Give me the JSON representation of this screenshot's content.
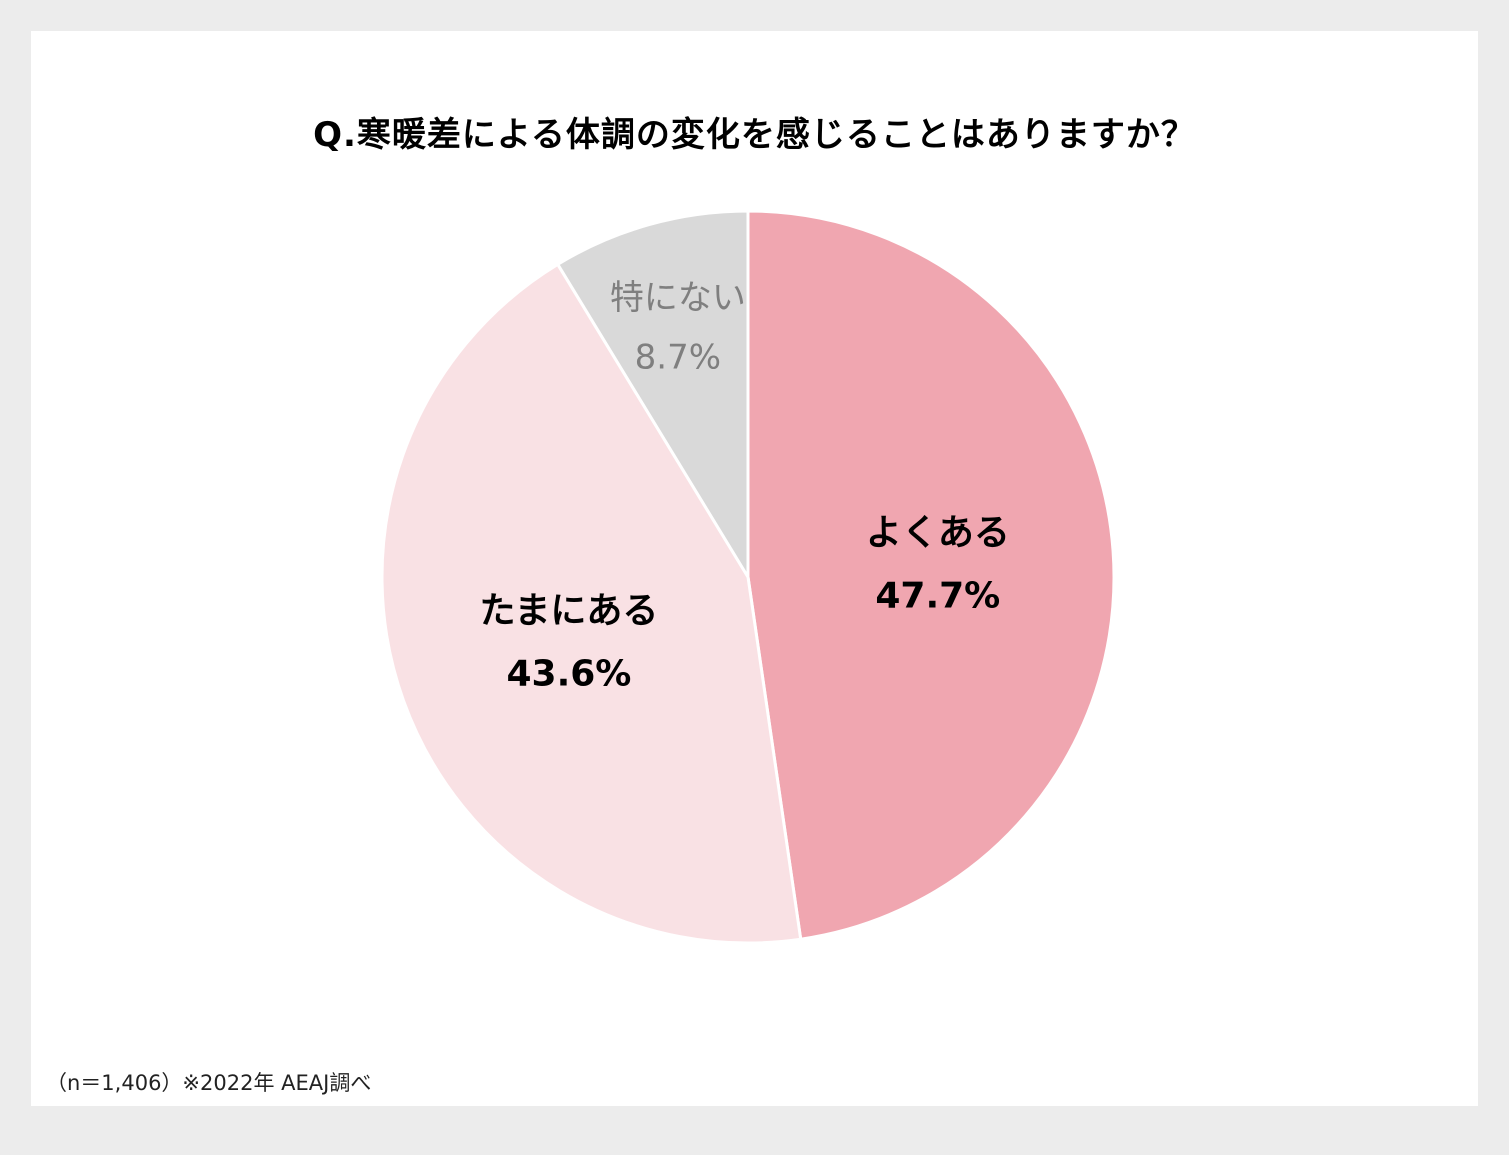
{
  "chart_data": {
    "type": "pie",
    "title": "Q.寒暖差による体調の変化を感じることはありますか？",
    "slices": [
      {
        "label": "よくある",
        "value": 47.7,
        "value_label": "47.7%",
        "color": "#f0a6b0",
        "text_color": "#000000",
        "bold": true
      },
      {
        "label": "たまにある",
        "value": 43.6,
        "value_label": "43.6%",
        "color": "#f9e1e4",
        "text_color": "#000000",
        "bold": true
      },
      {
        "label": "特にない",
        "value": 8.7,
        "value_label": "8.7%",
        "color": "#d9d9d9",
        "text_color": "#7f7f7f",
        "bold": false
      }
    ],
    "start": "12 o'clock",
    "direction": "clockwise",
    "legend": "none"
  },
  "footnote": "（n＝1,406）※2022年 AEAJ調べ"
}
